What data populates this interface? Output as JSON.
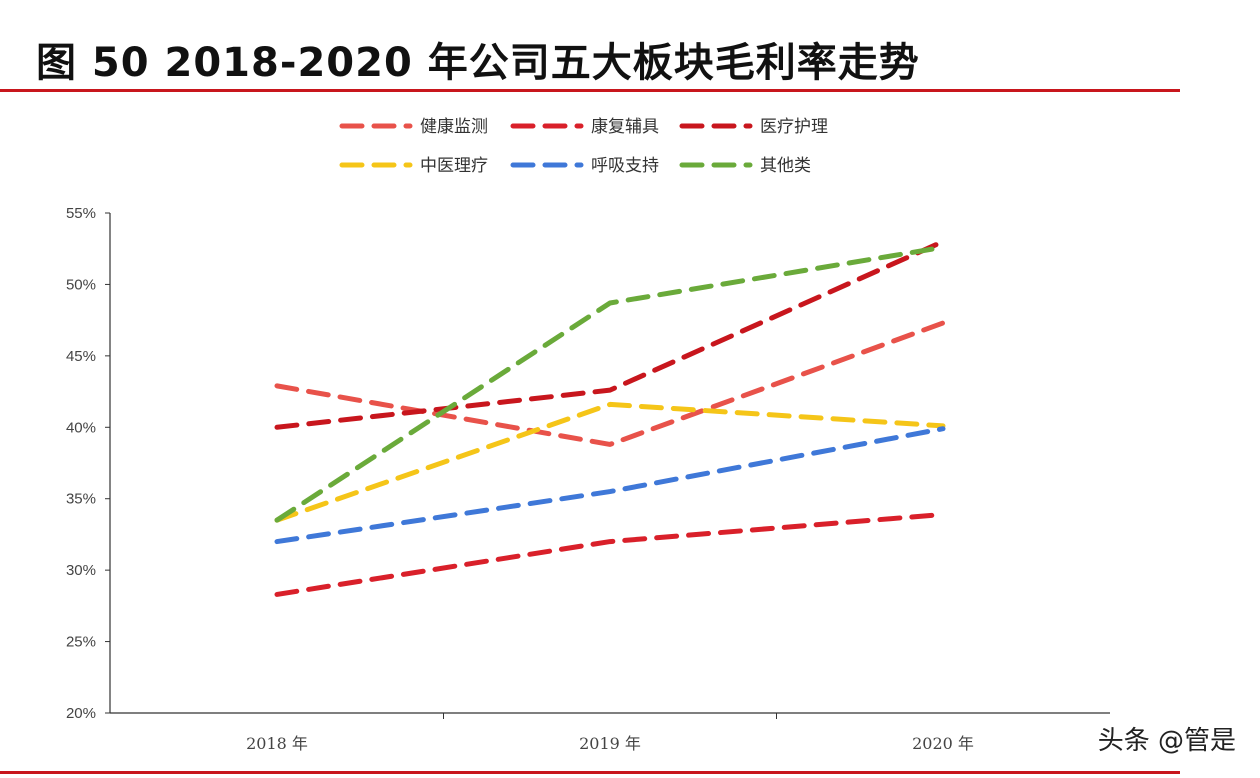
{
  "header": {
    "title": "图 50 2018-2020 年公司五大板块毛利率走势"
  },
  "watermark": {
    "text": "头条 @管是"
  },
  "colors": {
    "accent_rule": "#c8161d"
  },
  "chart_data": {
    "type": "line",
    "line_style": "dashed",
    "categories": [
      "2018 年",
      "2019 年",
      "2020 年"
    ],
    "ylim": [
      20,
      55
    ],
    "yticks": [
      "20%",
      "25%",
      "30%",
      "35%",
      "40%",
      "45%",
      "50%",
      "55%"
    ],
    "ytick_values": [
      20,
      25,
      30,
      35,
      40,
      45,
      50,
      55
    ],
    "grid": false,
    "legend_position": "top",
    "series": [
      {
        "name": "健康监测",
        "color": "#e8524a",
        "values": [
          42.9,
          38.8,
          47.3
        ]
      },
      {
        "name": "康复辅具",
        "color": "#d9202a",
        "values": [
          28.3,
          32.0,
          33.9
        ]
      },
      {
        "name": "医疗护理",
        "color": "#c8161d",
        "values": [
          40.0,
          42.6,
          53.0
        ]
      },
      {
        "name": "中医理疗",
        "color": "#f5c518",
        "values": [
          33.5,
          41.6,
          40.1
        ]
      },
      {
        "name": "呼吸支持",
        "color": "#3f78d8",
        "values": [
          32.0,
          35.5,
          39.9
        ]
      },
      {
        "name": "其他类",
        "color": "#6aaa3a",
        "values": [
          33.5,
          48.7,
          52.6
        ]
      }
    ]
  }
}
